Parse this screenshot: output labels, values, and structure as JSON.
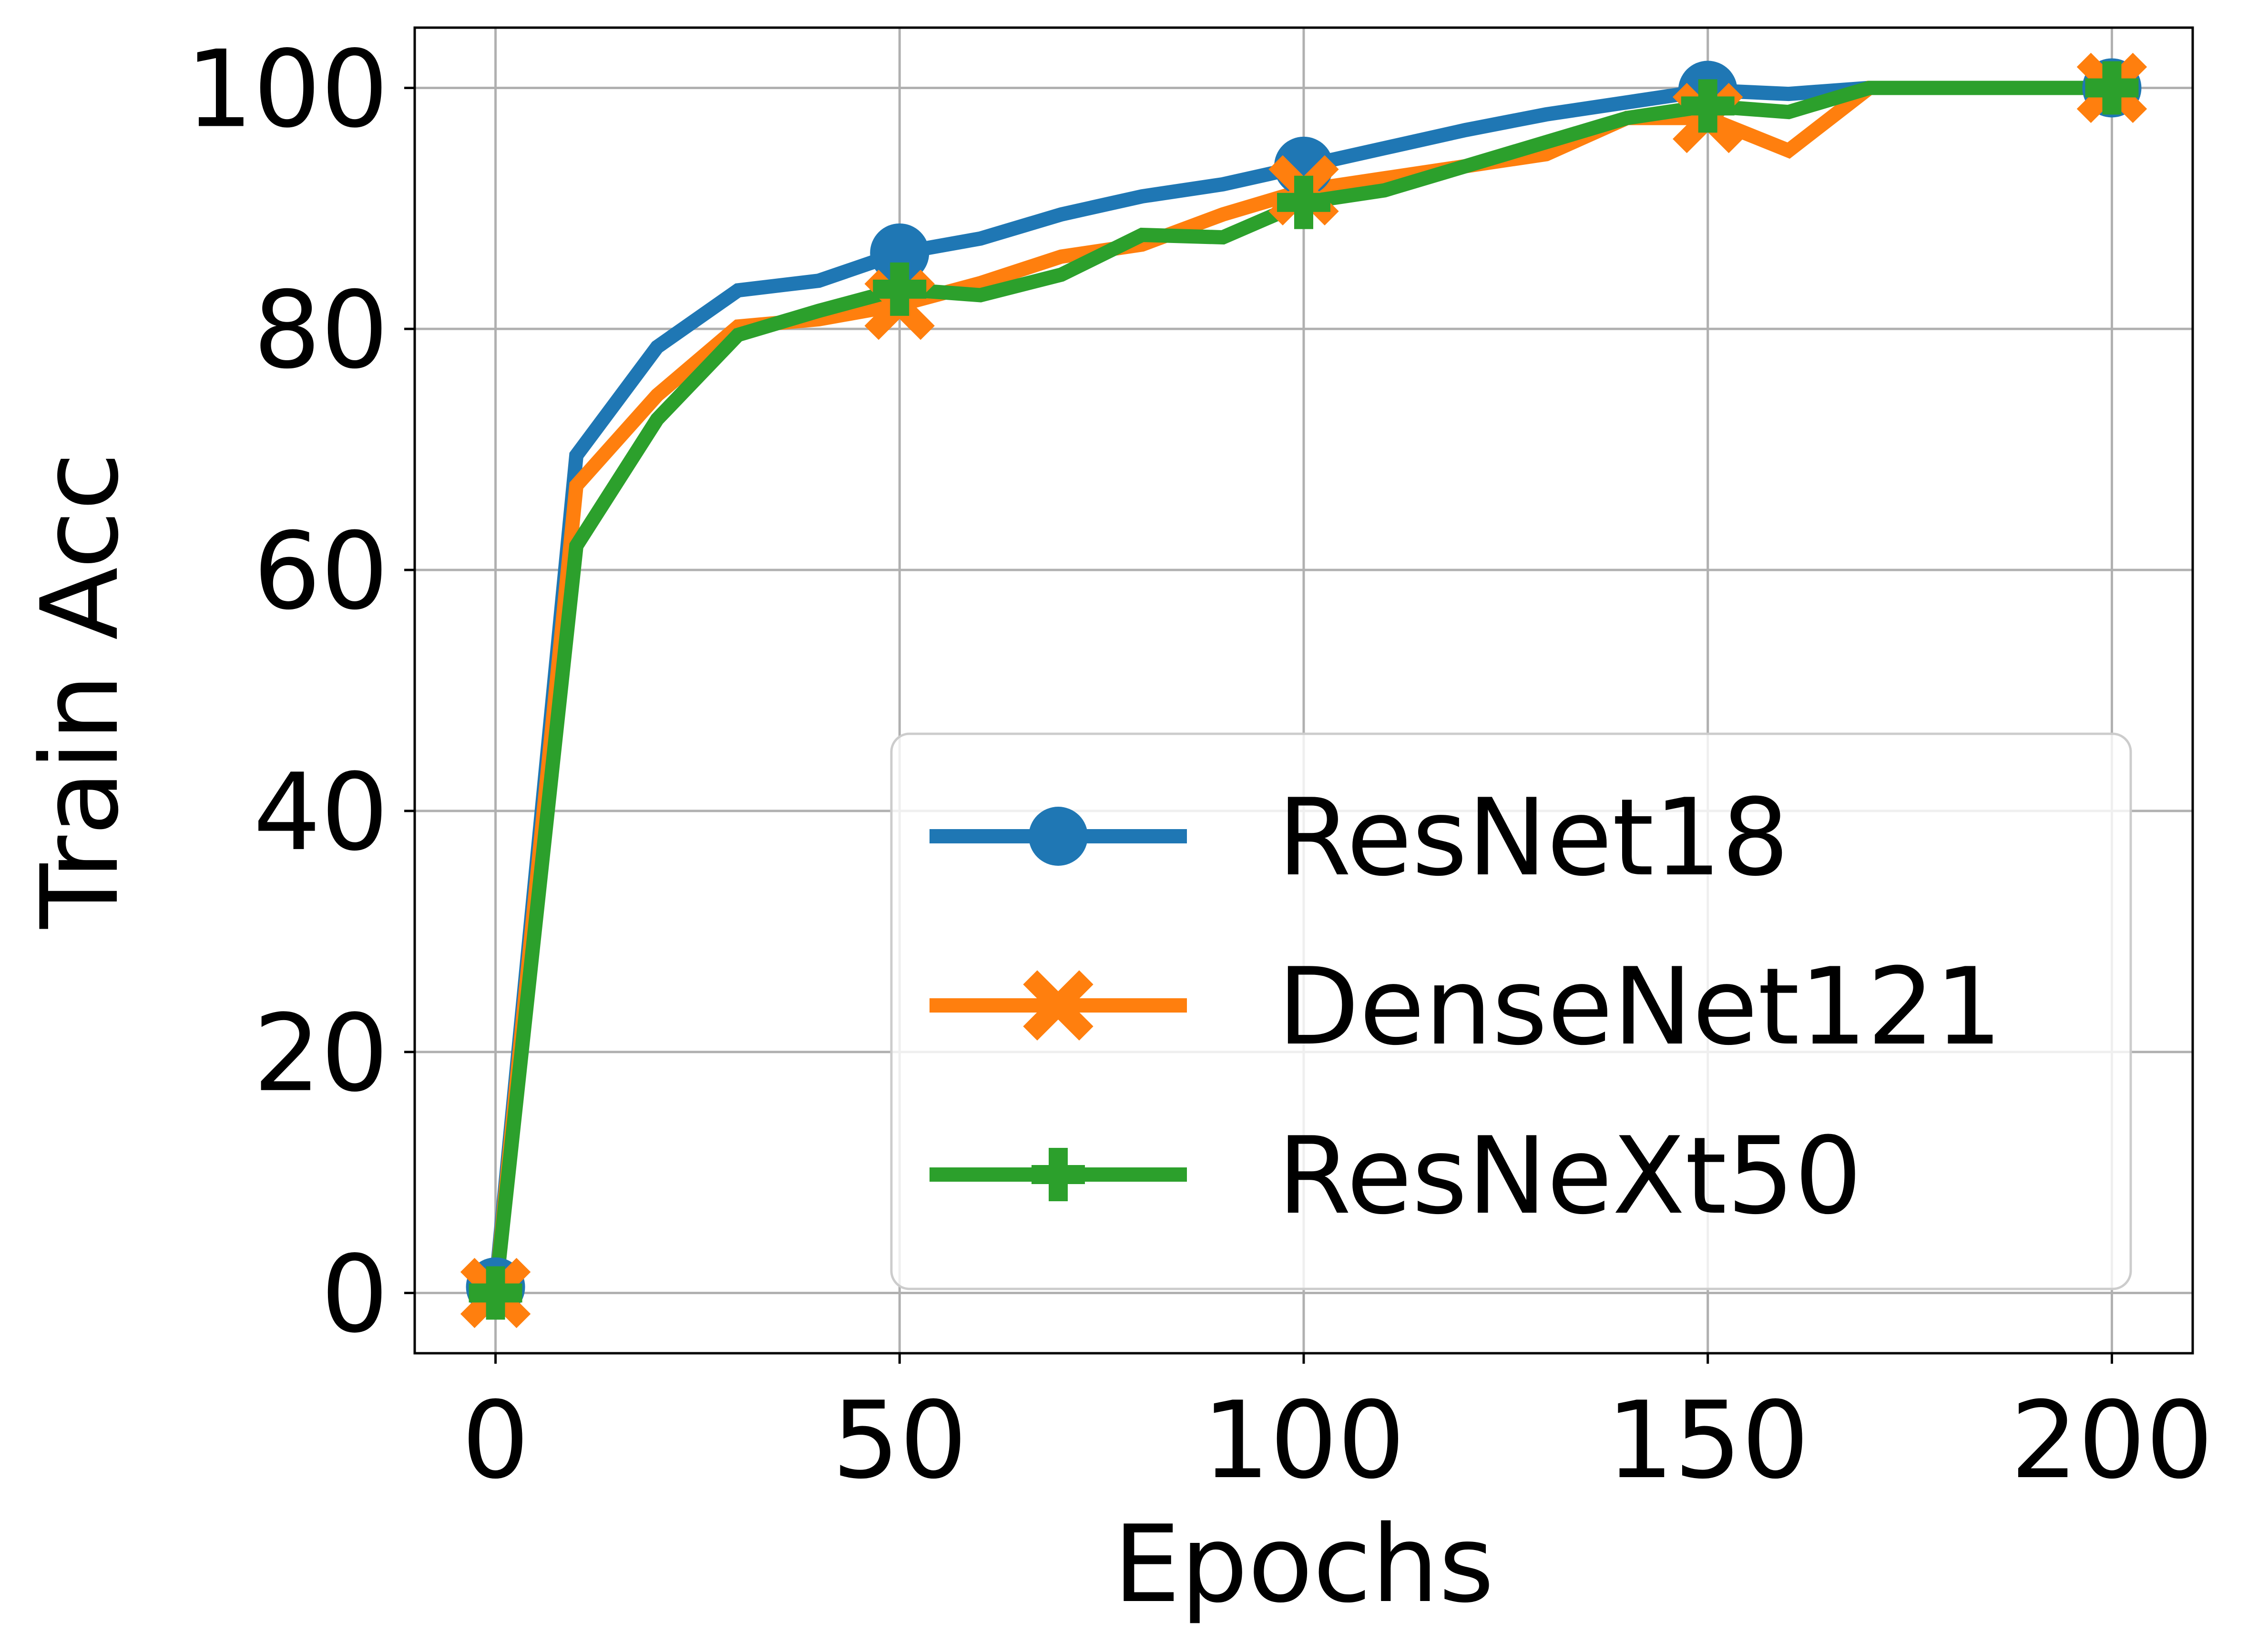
{
  "chart_data": {
    "type": "line",
    "xlabel": "Epochs",
    "ylabel": "Train Acc",
    "xlim": [
      -10,
      210
    ],
    "ylim": [
      -5,
      105
    ],
    "xticks": [
      0,
      50,
      100,
      150,
      200
    ],
    "yticks": [
      0,
      20,
      40,
      60,
      80,
      100
    ],
    "grid": true,
    "legend_position": "lower right",
    "x": [
      0,
      10,
      20,
      30,
      40,
      50,
      60,
      70,
      80,
      90,
      100,
      110,
      120,
      130,
      140,
      150,
      160,
      170,
      180,
      190,
      200
    ],
    "series": [
      {
        "name": "ResNet18",
        "color": "#1f77b4",
        "marker": "circle",
        "marker_every": 5,
        "values": [
          0.5,
          69.5,
          78.5,
          83.2,
          84.0,
          86.3,
          87.5,
          89.5,
          91.0,
          92.0,
          93.5,
          95.0,
          96.5,
          97.8,
          98.8,
          99.8,
          99.5,
          100.0,
          100.0,
          100.0,
          100.0
        ]
      },
      {
        "name": "DenseNet121",
        "color": "#ff7f0e",
        "marker": "x",
        "marker_every": 5,
        "values": [
          0.0,
          67.0,
          74.5,
          80.2,
          80.8,
          82.0,
          83.8,
          86.0,
          87.0,
          89.5,
          91.5,
          92.5,
          93.5,
          94.5,
          97.5,
          97.5,
          94.8,
          100.0,
          100.0,
          100.0,
          100.0
        ]
      },
      {
        "name": "ResNeXt50",
        "color": "#2ca02c",
        "marker": "plus",
        "marker_every": 5,
        "values": [
          0.0,
          62.0,
          72.5,
          79.5,
          81.5,
          83.3,
          82.8,
          84.5,
          87.8,
          87.6,
          90.5,
          91.5,
          93.5,
          95.5,
          97.5,
          98.5,
          98.0,
          100.0,
          100.0,
          100.0,
          100.0
        ]
      }
    ]
  }
}
